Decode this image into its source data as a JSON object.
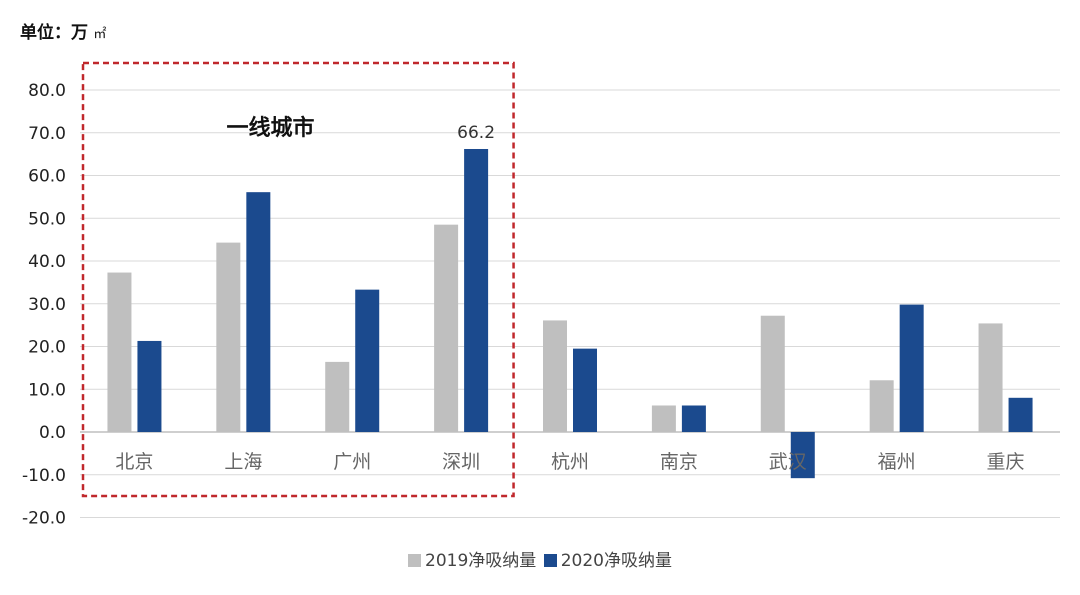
{
  "unit": {
    "prefix": "单位：",
    "value": "万",
    "suffix": "㎡"
  },
  "colors": {
    "s2019": "#BFBFBF",
    "s2020": "#1B4A8E",
    "highlight": "#C0282C",
    "grid": "#D9D9D9",
    "axis": "#444444"
  },
  "chart_data": {
    "type": "bar",
    "categories": [
      "北京",
      "上海",
      "广州",
      "深圳",
      "杭州",
      "南京",
      "武汉",
      "福州",
      "重庆"
    ],
    "series": [
      {
        "name": "2019净吸纳量",
        "values": [
          37.3,
          44.3,
          16.4,
          48.5,
          26.1,
          6.2,
          27.2,
          12.1,
          25.4
        ]
      },
      {
        "name": "2020净吸纳量",
        "values": [
          21.3,
          56.1,
          33.3,
          66.2,
          19.5,
          6.2,
          -10.8,
          29.8,
          8.0
        ]
      }
    ],
    "ylim": [
      -20,
      80
    ],
    "yticks": [
      "-20.0",
      "-10.0",
      "0.0",
      "10.0",
      "20.0",
      "30.0",
      "40.0",
      "50.0",
      "60.0",
      "70.0",
      "80.0"
    ],
    "data_label": {
      "text": "66.2",
      "series": 1,
      "index": 3
    },
    "annotation": {
      "text": "一线城市",
      "categories": [
        "北京",
        "上海",
        "广州",
        "深圳"
      ]
    },
    "grid": true,
    "legend": "bottom"
  }
}
